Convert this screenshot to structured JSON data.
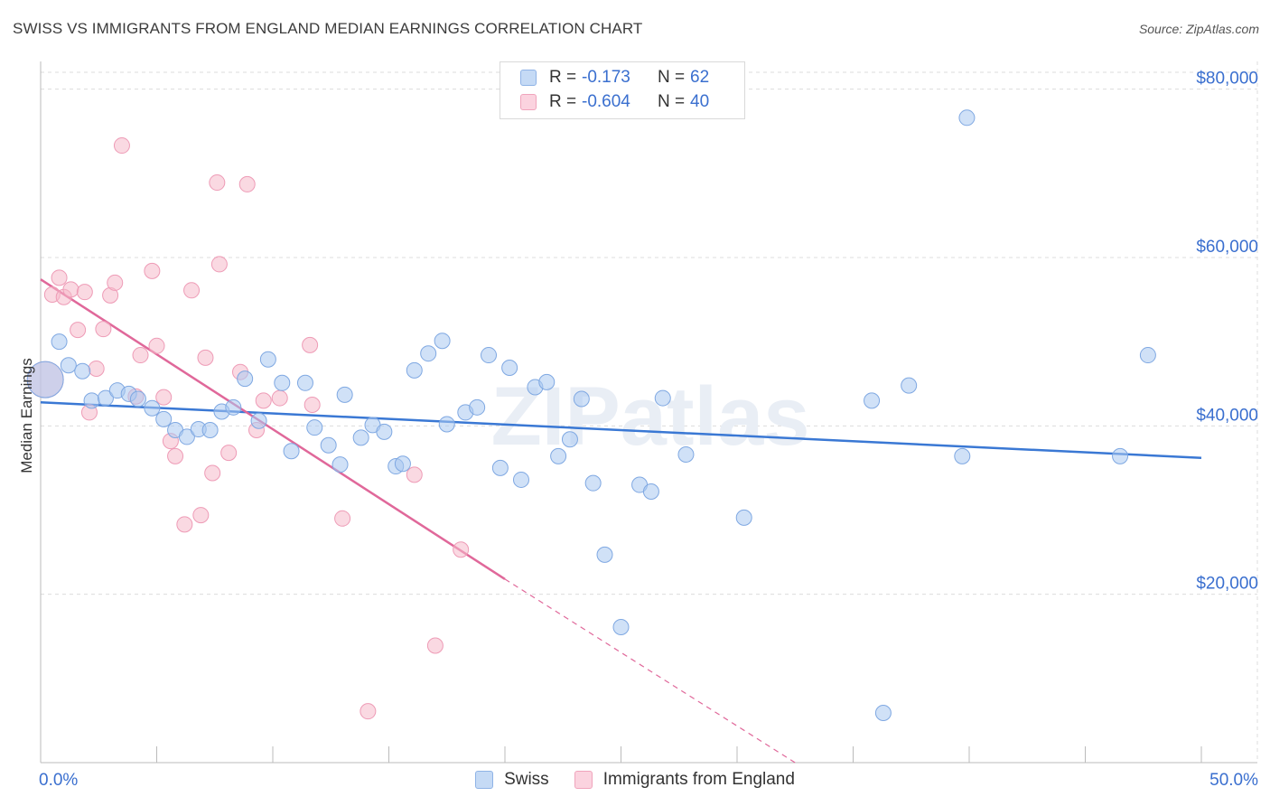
{
  "header": {
    "title": "SWISS VS IMMIGRANTS FROM ENGLAND MEDIAN EARNINGS CORRELATION CHART",
    "source": "Source: ZipAtlas.com"
  },
  "watermark": "ZIPatlas",
  "legend_top": {
    "rows": [
      {
        "r_label": "R =",
        "r_value": "-0.173",
        "n_label": "N =",
        "n_value": "62",
        "color": "#a9c8f0"
      },
      {
        "r_label": "R =",
        "r_value": "-0.604",
        "n_label": "N =",
        "n_value": "40",
        "color": "#f6b9cb"
      }
    ]
  },
  "legend_bottom": [
    {
      "label": "Swiss",
      "color": "#a9c8f0"
    },
    {
      "label": "Immigrants from England",
      "color": "#f6b9cb"
    }
  ],
  "chart_data": {
    "type": "scatter",
    "ylabel": "Median Earnings",
    "xlabel": "",
    "xlim": [
      0,
      50
    ],
    "ylim": [
      0,
      82000
    ],
    "x_tick_labels": [
      "0.0%",
      "50.0%"
    ],
    "y_ticks": [
      20000,
      40000,
      60000,
      80000
    ],
    "y_tick_labels": [
      "$20,000",
      "$40,000",
      "$60,000",
      "$80,000"
    ],
    "grid": true,
    "colors": {
      "swiss": "#3a78d4",
      "england": "#e0689a",
      "swiss_fill": "#a9c8f0",
      "england_fill": "#f6b9cb",
      "tick_label": "#3a6fcf"
    },
    "series": [
      {
        "name": "Swiss",
        "color": "#3a78d4",
        "trend": {
          "x": [
            0,
            50
          ],
          "y": [
            42800,
            36200
          ],
          "dashed_from": null
        },
        "points": [
          {
            "x": 0.2,
            "y": 45500,
            "big": true
          },
          {
            "x": 0.8,
            "y": 50000
          },
          {
            "x": 1.2,
            "y": 47200
          },
          {
            "x": 1.8,
            "y": 46500
          },
          {
            "x": 2.2,
            "y": 43000
          },
          {
            "x": 2.8,
            "y": 43300
          },
          {
            "x": 3.3,
            "y": 44200
          },
          {
            "x": 3.8,
            "y": 43800
          },
          {
            "x": 4.2,
            "y": 43200
          },
          {
            "x": 4.8,
            "y": 42100
          },
          {
            "x": 5.3,
            "y": 40800
          },
          {
            "x": 5.8,
            "y": 39500
          },
          {
            "x": 6.3,
            "y": 38700
          },
          {
            "x": 6.8,
            "y": 39600
          },
          {
            "x": 7.3,
            "y": 39500
          },
          {
            "x": 7.8,
            "y": 41700
          },
          {
            "x": 8.3,
            "y": 42200
          },
          {
            "x": 8.8,
            "y": 45600
          },
          {
            "x": 9.4,
            "y": 40600
          },
          {
            "x": 9.8,
            "y": 47900
          },
          {
            "x": 10.4,
            "y": 45100
          },
          {
            "x": 10.8,
            "y": 37000
          },
          {
            "x": 11.4,
            "y": 45100
          },
          {
            "x": 11.8,
            "y": 39800
          },
          {
            "x": 12.4,
            "y": 37700
          },
          {
            "x": 12.9,
            "y": 35400
          },
          {
            "x": 13.1,
            "y": 43700
          },
          {
            "x": 13.8,
            "y": 38600
          },
          {
            "x": 14.3,
            "y": 40100
          },
          {
            "x": 14.8,
            "y": 39300
          },
          {
            "x": 15.3,
            "y": 35200
          },
          {
            "x": 15.6,
            "y": 35500
          },
          {
            "x": 16.1,
            "y": 46600
          },
          {
            "x": 16.7,
            "y": 48600
          },
          {
            "x": 17.3,
            "y": 50100
          },
          {
            "x": 17.5,
            "y": 40200
          },
          {
            "x": 18.3,
            "y": 41600
          },
          {
            "x": 18.8,
            "y": 42200
          },
          {
            "x": 19.3,
            "y": 48400
          },
          {
            "x": 19.8,
            "y": 35000
          },
          {
            "x": 20.2,
            "y": 46900
          },
          {
            "x": 20.7,
            "y": 33600
          },
          {
            "x": 21.3,
            "y": 44600
          },
          {
            "x": 21.8,
            "y": 45200
          },
          {
            "x": 22.3,
            "y": 36400
          },
          {
            "x": 22.8,
            "y": 38400
          },
          {
            "x": 23.3,
            "y": 43200
          },
          {
            "x": 23.8,
            "y": 33200
          },
          {
            "x": 24.3,
            "y": 24700
          },
          {
            "x": 25.8,
            "y": 33000
          },
          {
            "x": 25.0,
            "y": 16100
          },
          {
            "x": 26.3,
            "y": 32200
          },
          {
            "x": 26.8,
            "y": 43300
          },
          {
            "x": 27.8,
            "y": 36600
          },
          {
            "x": 30.3,
            "y": 29100
          },
          {
            "x": 35.8,
            "y": 43000
          },
          {
            "x": 36.3,
            "y": 5900
          },
          {
            "x": 37.4,
            "y": 44800
          },
          {
            "x": 39.7,
            "y": 36400
          },
          {
            "x": 39.9,
            "y": 76600
          },
          {
            "x": 46.5,
            "y": 36400
          },
          {
            "x": 47.7,
            "y": 48400
          }
        ]
      },
      {
        "name": "Immigrants from England",
        "color": "#e0689a",
        "trend": {
          "x": [
            0,
            20,
            32.5
          ],
          "y": [
            57400,
            21800,
            0
          ],
          "dashed_from": 20
        },
        "points": [
          {
            "x": 0.2,
            "y": 45500,
            "big": true
          },
          {
            "x": 0.5,
            "y": 55600
          },
          {
            "x": 0.8,
            "y": 57600
          },
          {
            "x": 1.0,
            "y": 55300
          },
          {
            "x": 1.3,
            "y": 56200
          },
          {
            "x": 1.6,
            "y": 51400
          },
          {
            "x": 1.9,
            "y": 55900
          },
          {
            "x": 2.1,
            "y": 41600
          },
          {
            "x": 2.4,
            "y": 46800
          },
          {
            "x": 2.7,
            "y": 51500
          },
          {
            "x": 3.0,
            "y": 55500
          },
          {
            "x": 3.2,
            "y": 57000
          },
          {
            "x": 3.5,
            "y": 73300
          },
          {
            "x": 4.1,
            "y": 43500
          },
          {
            "x": 4.3,
            "y": 48400
          },
          {
            "x": 4.8,
            "y": 58400
          },
          {
            "x": 5.0,
            "y": 49500
          },
          {
            "x": 5.3,
            "y": 43400
          },
          {
            "x": 5.6,
            "y": 38200
          },
          {
            "x": 5.8,
            "y": 36400
          },
          {
            "x": 6.2,
            "y": 28300
          },
          {
            "x": 6.5,
            "y": 56100
          },
          {
            "x": 6.9,
            "y": 29400
          },
          {
            "x": 7.1,
            "y": 48100
          },
          {
            "x": 7.4,
            "y": 34400
          },
          {
            "x": 7.6,
            "y": 68900
          },
          {
            "x": 7.7,
            "y": 59200
          },
          {
            "x": 8.1,
            "y": 36800
          },
          {
            "x": 8.6,
            "y": 46400
          },
          {
            "x": 8.9,
            "y": 68700
          },
          {
            "x": 9.3,
            "y": 39500
          },
          {
            "x": 9.6,
            "y": 43000
          },
          {
            "x": 10.3,
            "y": 43300
          },
          {
            "x": 11.6,
            "y": 49600
          },
          {
            "x": 11.7,
            "y": 42500
          },
          {
            "x": 13.0,
            "y": 29000
          },
          {
            "x": 14.1,
            "y": 6100
          },
          {
            "x": 16.1,
            "y": 34200
          },
          {
            "x": 17.0,
            "y": 13900
          },
          {
            "x": 18.1,
            "y": 25300
          }
        ]
      }
    ]
  }
}
